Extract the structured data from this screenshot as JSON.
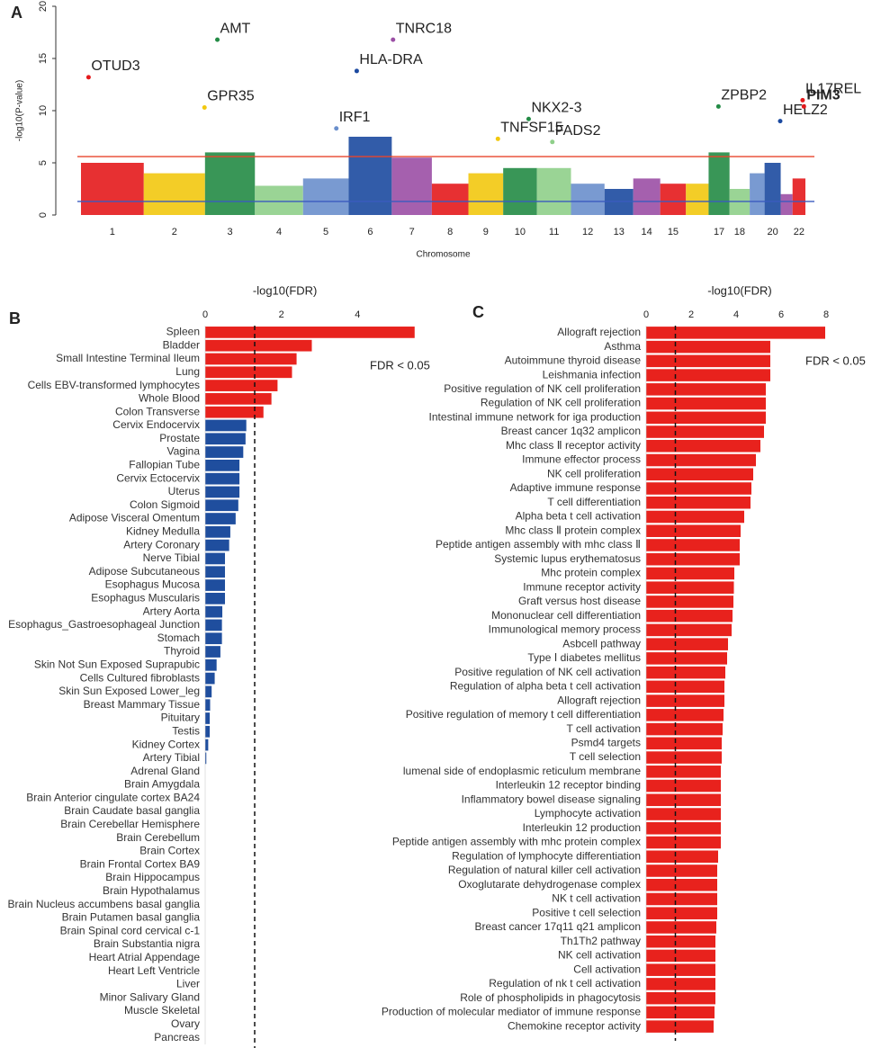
{
  "chart_data": [
    {
      "type": "manhattan",
      "panel": "A",
      "ylabel": "-log10(P-value)",
      "xlabel": "Chromosome",
      "ylim": [
        0,
        20
      ],
      "yticks": [
        0,
        5,
        10,
        15,
        20
      ],
      "categories": [
        "1",
        "2",
        "3",
        "4",
        "5",
        "6",
        "7",
        "8",
        "9",
        "10",
        "11",
        "12",
        "13",
        "14",
        "15",
        null,
        "17",
        "18",
        null,
        "20",
        null,
        "22"
      ],
      "sizes": [
        249,
        243,
        198,
        191,
        181,
        171,
        159,
        145,
        138,
        134,
        135,
        133,
        114,
        107,
        102,
        90,
        83,
        80,
        59,
        64,
        47,
        51
      ],
      "colors": [
        "#e41a1c",
        "#f2c80f",
        "#238b45",
        "#8fcf8a",
        "#6a8fcc",
        "#1c4aa0",
        "#9b4fa5",
        "#e41a1c",
        "#f2c80f",
        "#238b45",
        "#8fcf8a",
        "#6a8fcc",
        "#1c4aa0",
        "#9b4fa5",
        "#e41a1c",
        "#f2c80f",
        "#238b45",
        "#8fcf8a",
        "#6a8fcc",
        "#1c4aa0",
        "#9b4fa5",
        "#e41a1c"
      ],
      "values": [
        5,
        4,
        6,
        2.8,
        3.5,
        7.5,
        5.5,
        3,
        4,
        4.5,
        4.5,
        3,
        2.5,
        3.5,
        3,
        3,
        6,
        2.5,
        4,
        5,
        2,
        3.5
      ],
      "thresholds": [
        {
          "value": 5.6,
          "color": "#e8452c"
        },
        {
          "value": 1.3,
          "color": "#3a5bbf"
        }
      ],
      "points": [
        {
          "text": "OTUD3",
          "chromosome": "1",
          "position": 30,
          "value": 13.2
        },
        {
          "text": "GPR35",
          "chromosome": "2",
          "position": 241,
          "value": 10.3
        },
        {
          "text": "AMT",
          "chromosome": "3",
          "position": 49,
          "value": 16.8
        },
        {
          "text": "IRF1",
          "chromosome": "5",
          "position": 132,
          "value": 8.3
        },
        {
          "text": "HLA-DRA",
          "chromosome": "6",
          "position": 32,
          "value": 13.8
        },
        {
          "text": "TNRC18",
          "chromosome": "7",
          "position": 5,
          "value": 16.8
        },
        {
          "text": "TNFSF15",
          "chromosome": "9",
          "position": 117,
          "value": 7.3
        },
        {
          "text": "NKX2-3",
          "chromosome": "10",
          "position": 101,
          "value": 9.2
        },
        {
          "text": "FADS2",
          "chromosome": "11",
          "position": 61,
          "value": 7.0
        },
        {
          "text": "ZPBP2",
          "chromosome": "17",
          "position": 39,
          "value": 10.4
        },
        {
          "text": "HELZ2",
          "chromosome": "20",
          "position": 62,
          "value": 9.0
        },
        {
          "text": "IL17REL",
          "chromosome": "22",
          "position": 40,
          "value": 11.0
        },
        {
          "text": "PIM3",
          "chromosome": "22",
          "position": 45,
          "value": 10.4,
          "label_color": "#e8403a"
        }
      ]
    },
    {
      "type": "bar",
      "panel": "B",
      "xlabel": "-log10(FDR)",
      "xlim": [
        0,
        5.6
      ],
      "xticks": [
        0,
        2,
        4
      ],
      "threshold": 1.3,
      "annotation": "FDR < 0.05",
      "color": "#e8221d",
      "below_color": "#1f4e9e",
      "categories": [
        "Spleen",
        "Bladder",
        "Small Intestine Terminal Ileum",
        "Lung",
        "Cells EBV-transformed lymphocytes",
        "Whole Blood",
        "Colon Transverse",
        "Cervix Endocervix",
        "Prostate",
        "Vagina",
        "Fallopian Tube",
        "Cervix Ectocervix",
        "Uterus",
        "Colon Sigmoid",
        "Adipose Visceral Omentum",
        "Kidney Medulla",
        "Artery Coronary",
        "Nerve Tibial",
        "Adipose Subcutaneous",
        "Esophagus Mucosa",
        "Esophagus Muscularis",
        "Artery Aorta",
        "Esophagus_Gastroesophageal Junction",
        "Stomach",
        "Thyroid",
        "Skin Not Sun Exposed Suprapubic",
        "Cells Cultured fibroblasts",
        "Skin Sun Exposed Lower_leg",
        "Breast Mammary Tissue",
        "Pituitary",
        "Testis",
        "Kidney Cortex",
        "Artery Tibial",
        "Adrenal Gland",
        "Brain Amygdala",
        "Brain Anterior cingulate cortex BA24",
        "Brain Caudate basal ganglia",
        "Brain Cerebellar Hemisphere",
        "Brain Cerebellum",
        "Brain Cortex",
        "Brain Frontal Cortex BA9",
        "Brain Hippocampus",
        "Brain Hypothalamus",
        "Brain Nucleus accumbens basal ganglia",
        "Brain Putamen basal ganglia",
        "Brain Spinal cord cervical c-1",
        "Brain Substantia nigra",
        "Heart Atrial Appendage",
        "Heart Left Ventricle",
        "Liver",
        "Minor Salivary Gland",
        "Muscle Skeletal",
        "Ovary",
        "Pancreas"
      ],
      "values": [
        5.5,
        2.8,
        2.4,
        2.28,
        1.9,
        1.74,
        1.53,
        1.08,
        1.06,
        1.0,
        0.9,
        0.9,
        0.9,
        0.87,
        0.8,
        0.66,
        0.63,
        0.52,
        0.52,
        0.52,
        0.52,
        0.45,
        0.44,
        0.44,
        0.4,
        0.3,
        0.25,
        0.17,
        0.13,
        0.12,
        0.12,
        0.08,
        0.03,
        0,
        0,
        0,
        0,
        0,
        0,
        0,
        0,
        0,
        0,
        0,
        0,
        0,
        0,
        0,
        0,
        0,
        0,
        0,
        0,
        0
      ]
    },
    {
      "type": "bar",
      "panel": "C",
      "xlabel": "-log10(FDR)",
      "xlim": [
        0,
        8
      ],
      "xticks": [
        0,
        2,
        4,
        6,
        8
      ],
      "threshold": 1.3,
      "annotation": "FDR < 0.05",
      "color": "#e8221d",
      "below_color": "#1f4e9e",
      "categories": [
        "Allograft rejection",
        "Asthma",
        "Autoimmune thyroid disease",
        "Leishmania infection",
        "Positive regulation of NK cell proliferation",
        "Regulation of NK cell proliferation",
        "Intestinal immune network for iga production",
        "Breast cancer 1q32 amplicon",
        "Mhc class Ⅱ receptor activity",
        "Immune effector process",
        "NK cell proliferation",
        "Adaptive immune response",
        "T cell differentiation",
        "Alpha beta t cell activation",
        "Mhc class Ⅱ protein complex",
        "Peptide antigen assembly with mhc class Ⅱ",
        "Systemic lupus erythematosus",
        "Mhc protein complex",
        "Immune receptor activity",
        "Graft versus host disease",
        "Mononuclear cell differentiation",
        "Immunological memory process",
        "Asbcell pathway",
        "Type Ⅰ diabetes mellitus",
        "Positive regulation of NK cell activation",
        "Regulation of alpha beta t cell activation",
        "Allograft rejection",
        "Positive regulation of memory t cell differentiation",
        "T cell activation",
        "Psmd4 targets",
        "T cell selection",
        "lumenal side of endoplasmic reticulum membrane",
        "Interleukin 12 receptor binding",
        "Inflammatory bowel disease signaling",
        "Lymphocyte activation",
        "Interleukin 12 production",
        "Peptide antigen assembly with mhc protein complex",
        "Regulation of lymphocyte differentiation",
        "Regulation of natural killer cell activation",
        "Oxoglutarate dehydrogenase complex",
        "NK t cell activation",
        "Positive t cell selection",
        "Breast cancer 17q11 q21 amplicon",
        "Th1Th2 pathway",
        "NK cell activation",
        "Cell activation",
        "Regulation of nk t cell activation",
        "Role of phospholipids in phagocytosis",
        "Production of molecular mediator of immune response",
        "Chemokine receptor activity"
      ],
      "values": [
        7.96,
        5.52,
        5.52,
        5.52,
        5.32,
        5.32,
        5.32,
        5.24,
        5.08,
        4.88,
        4.76,
        4.68,
        4.64,
        4.36,
        4.2,
        4.16,
        4.16,
        3.92,
        3.9,
        3.88,
        3.84,
        3.8,
        3.64,
        3.6,
        3.52,
        3.48,
        3.48,
        3.44,
        3.4,
        3.36,
        3.36,
        3.32,
        3.32,
        3.32,
        3.32,
        3.32,
        3.32,
        3.2,
        3.16,
        3.16,
        3.16,
        3.16,
        3.12,
        3.08,
        3.08,
        3.08,
        3.08,
        3.08,
        3.04,
        3.0
      ]
    }
  ]
}
